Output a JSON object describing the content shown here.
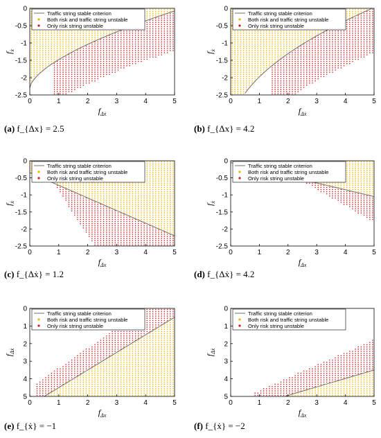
{
  "colors": {
    "both": "#f0b400",
    "risk": "#cc1a1a",
    "criterion": "#6f6f6f",
    "axis": "#000000"
  },
  "legend": {
    "criterion": "Traffic string stable criterion",
    "both": "Both risk and traffic string unstable",
    "risk": "Only risk string unstable"
  },
  "captions": [
    {
      "tag": "(a)",
      "text": "f_{Δx} = 2.5"
    },
    {
      "tag": "(b)",
      "text": "f_{Δx} = 4.2"
    },
    {
      "tag": "(c)",
      "text": "f_{Δẋ} = 1.2"
    },
    {
      "tag": "(d)",
      "text": "f_{Δẋ} = 4.2"
    },
    {
      "tag": "(e)",
      "text": "f_{ẋ} = −1"
    },
    {
      "tag": "(f)",
      "text": "f_{ẋ} = −2"
    }
  ],
  "chart_data": [
    {
      "type": "scatter",
      "xlabel": "f_{Δẋ}",
      "ylabel": "f_{ẋ}",
      "xlim": [
        0,
        5
      ],
      "ylim": [
        -2.5,
        0
      ],
      "xticks": [
        "0",
        "1",
        "2",
        "3",
        "4",
        "5"
      ],
      "yticks": [
        "0",
        "-0.5",
        "-1",
        "-1.5",
        "-2",
        "-2.5"
      ],
      "criterion": {
        "a": -2.3,
        "b": 0.72,
        "c": 1.5
      }
    },
    {
      "type": "scatter",
      "xlabel": "f_{Δẋ}",
      "ylabel": "f_{ẋ}",
      "xlim": [
        0,
        5
      ],
      "ylim": [
        -2.5,
        0
      ],
      "xticks": [
        "0",
        "1",
        "2",
        "3",
        "4",
        "5"
      ],
      "yticks": [
        "0",
        "-0.5",
        "-1",
        "-1.5",
        "-2",
        "-2.5"
      ],
      "criterion": {
        "a": -3.7,
        "b": 2.55,
        "c": 2.7
      }
    },
    {
      "type": "scatter",
      "xlabel": "f_{Δx}",
      "ylabel": "f_{ẋ}",
      "xlim": [
        0,
        5
      ],
      "ylim": [
        -2.5,
        0
      ],
      "xticks": [
        "0",
        "1",
        "2",
        "3",
        "4",
        "5"
      ],
      "yticks": [
        "0",
        "-0.5",
        "-1",
        "-1.5",
        "-2",
        "-2.5"
      ],
      "criterion": {
        "a": -0.3,
        "b": -0.38,
        "c": 1
      }
    },
    {
      "type": "scatter",
      "xlabel": "f_{Δx}",
      "ylabel": "f_{ẋ}",
      "xlim": [
        0,
        5
      ],
      "ylim": [
        -2.5,
        0
      ],
      "xticks": [
        "0",
        "1",
        "2",
        "3",
        "4",
        "5"
      ],
      "yticks": [
        "0",
        "-0.5",
        "-1",
        "-1.5",
        "-2",
        "-2.5"
      ],
      "criterion": {
        "a": 0.05,
        "b": -0.22,
        "c": 1
      }
    },
    {
      "type": "scatter",
      "xlabel": "f_{Δx}",
      "ylabel": "f_{Δẋ}",
      "xlim": [
        0,
        5
      ],
      "ylim": [
        0,
        5
      ],
      "xticks": [
        "0",
        "1",
        "2",
        "3",
        "4",
        "5"
      ],
      "yticks": [
        "0",
        "1",
        "2",
        "3",
        "4",
        "5"
      ],
      "criterion": {
        "a": -0.5,
        "b": 1.0,
        "c": 1
      }
    },
    {
      "type": "scatter",
      "xlabel": "f_{Δx}",
      "ylabel": "f_{Δẋ}",
      "xlim": [
        0,
        5
      ],
      "ylim": [
        0,
        5
      ],
      "xticks": [
        "0",
        "1",
        "2",
        "3",
        "4",
        "5"
      ],
      "yticks": [
        "0",
        "1",
        "2",
        "3",
        "4",
        "5"
      ],
      "criterion": {
        "a": -0.9,
        "b": 0.48,
        "c": 1
      }
    }
  ]
}
